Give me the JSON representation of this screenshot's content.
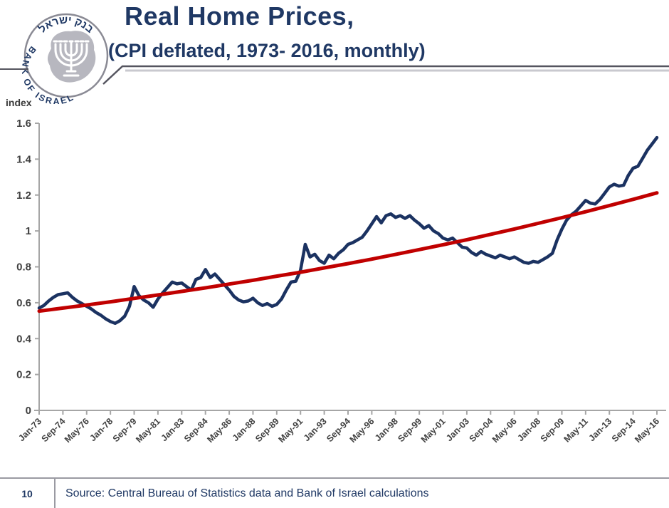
{
  "header": {
    "title": "Real Home Prices,",
    "subtitle": "(CPI deflated, 1973- 2016, monthly)",
    "logo": {
      "top_text": "בנק ישראל",
      "bottom_text": "BANK OF ISRAEL"
    }
  },
  "chart": {
    "index_label": "index"
  },
  "chart_data": {
    "type": "line",
    "title": "Real Home Prices, (CPI deflated, 1973- 2016, monthly)",
    "xlabel": "",
    "ylabel": "index",
    "ylim": [
      0,
      1.6
    ],
    "ytick_labels": [
      "0",
      "0.2",
      "0.4",
      "0.6",
      "0.8",
      "1",
      "1.2",
      "1.4",
      "1.6"
    ],
    "ytick_values": [
      0,
      0.2,
      0.4,
      0.6,
      0.8,
      1.0,
      1.2,
      1.4,
      1.6
    ],
    "x_tick_labels": [
      "Jan-73",
      "Sep-74",
      "May-76",
      "Jan-78",
      "Sep-79",
      "May-81",
      "Jan-83",
      "Sep-84",
      "May-86",
      "Jan-88",
      "Sep-89",
      "May-91",
      "Jan-93",
      "Sep-94",
      "May-96",
      "Jan-98",
      "Sep-99",
      "May-01",
      "Jan-03",
      "Sep-04",
      "May-06",
      "Jan-08",
      "Sep-09",
      "May-11",
      "Jan-13",
      "Sep-14",
      "May-16"
    ],
    "x_months_per_tick": 20,
    "x_total_months": 520,
    "grid": false,
    "legend_position": "none",
    "series": [
      {
        "name": "real-home-price-index",
        "color": "#1b3261",
        "line_width": 4.5,
        "step_months": 4,
        "values": [
          0.57,
          0.585,
          0.61,
          0.63,
          0.645,
          0.65,
          0.655,
          0.63,
          0.61,
          0.595,
          0.58,
          0.565,
          0.545,
          0.53,
          0.51,
          0.495,
          0.485,
          0.5,
          0.525,
          0.58,
          0.69,
          0.64,
          0.615,
          0.6,
          0.575,
          0.62,
          0.655,
          0.685,
          0.715,
          0.705,
          0.71,
          0.69,
          0.67,
          0.73,
          0.74,
          0.785,
          0.74,
          0.76,
          0.73,
          0.7,
          0.67,
          0.635,
          0.615,
          0.605,
          0.61,
          0.625,
          0.6,
          0.585,
          0.595,
          0.58,
          0.59,
          0.62,
          0.67,
          0.715,
          0.72,
          0.78,
          0.925,
          0.855,
          0.87,
          0.835,
          0.82,
          0.865,
          0.845,
          0.875,
          0.895,
          0.925,
          0.935,
          0.95,
          0.965,
          1.0,
          1.04,
          1.08,
          1.045,
          1.085,
          1.095,
          1.075,
          1.085,
          1.07,
          1.085,
          1.06,
          1.04,
          1.015,
          1.03,
          1.0,
          0.985,
          0.96,
          0.95,
          0.96,
          0.935,
          0.91,
          0.905,
          0.88,
          0.865,
          0.885,
          0.87,
          0.86,
          0.85,
          0.865,
          0.855,
          0.845,
          0.855,
          0.84,
          0.825,
          0.82,
          0.83,
          0.825,
          0.84,
          0.855,
          0.875,
          0.95,
          1.01,
          1.06,
          1.09,
          1.11,
          1.14,
          1.17,
          1.155,
          1.15,
          1.175,
          1.21,
          1.245,
          1.26,
          1.25,
          1.255,
          1.31,
          1.35,
          1.36,
          1.405,
          1.45,
          1.485,
          1.52
        ]
      },
      {
        "name": "exponential-trend",
        "color": "#c00000",
        "line_width": 5,
        "step_months": 20,
        "values": [
          0.553,
          0.57,
          0.587,
          0.605,
          0.624,
          0.643,
          0.663,
          0.683,
          0.704,
          0.725,
          0.748,
          0.77,
          0.794,
          0.818,
          0.843,
          0.869,
          0.896,
          0.923,
          0.951,
          0.981,
          1.011,
          1.042,
          1.074,
          1.107,
          1.141,
          1.176,
          1.212
        ]
      }
    ],
    "colors": {
      "axis": "#a6a6a6",
      "tick_text": "#3f3f3f",
      "navy_text": "#1f3864"
    }
  },
  "footer": {
    "page_number": "10",
    "source": "Source: Central Bureau of Statistics data and Bank of Israel calculations"
  }
}
